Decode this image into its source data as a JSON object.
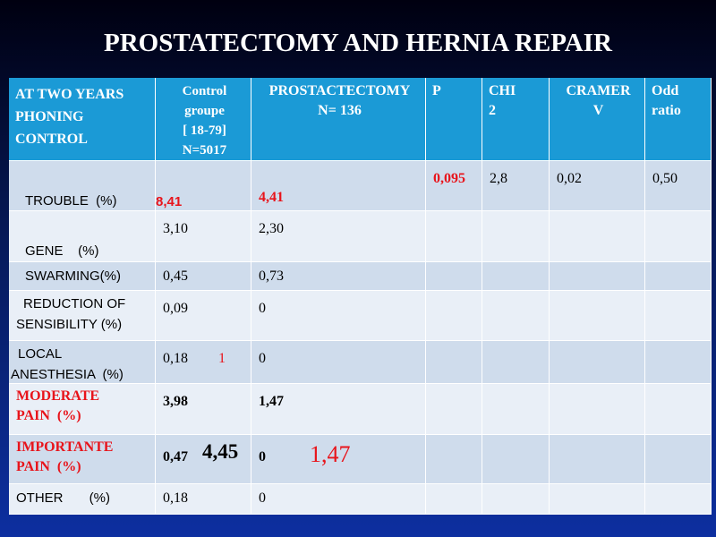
{
  "title": "PROSTATECTOMY AND HERNIA REPAIR",
  "table": {
    "header": [
      [
        "AT TWO YEARS",
        "PHONING",
        "CONTROL"
      ],
      [
        "Control",
        "groupe",
        "[ 18-79]",
        "N=5017"
      ],
      [
        "PROSTACTECTOMY",
        "N= 136"
      ],
      [
        "P"
      ],
      [
        "CHI",
        "2"
      ],
      [
        "CRAMER",
        "V"
      ],
      [
        "Odd",
        "ratio"
      ]
    ],
    "rows": [
      {
        "label": "TROUBLE  (%)",
        "label_extra": "8,41",
        "prostatectomy": "4,41",
        "p": "0,095",
        "chi2": "2,8",
        "cramer": "0,02",
        "odd": "0,50"
      },
      {
        "label": "GENE    (%)",
        "control": "3,10",
        "prostatectomy": "2,30"
      },
      {
        "label": "SWARMING(%)",
        "control": "0,45",
        "prostatectomy": "0,73"
      },
      {
        "label": [
          "REDUCTION OF",
          "SENSIBILITY (%)"
        ],
        "control": "0,09",
        "prostatectomy": "0"
      },
      {
        "label": [
          "LOCAL",
          "ANESTHESIA  (%)"
        ],
        "control": "0,18",
        "control_extra": "1",
        "prostatectomy": "0"
      },
      {
        "label": [
          "MODERATE",
          "PAIN  (%)"
        ],
        "control": "3,98",
        "prostatectomy": "1,47"
      },
      {
        "label": [
          "IMPORTANTE",
          "PAIN  (%)"
        ],
        "control": "0,47",
        "control_extra": "4,45",
        "prostatectomy": "0",
        "prostatectomy_extra": "1,47"
      },
      {
        "label": "OTHER       (%)",
        "control": "0,18",
        "prostatectomy": "0"
      }
    ]
  }
}
